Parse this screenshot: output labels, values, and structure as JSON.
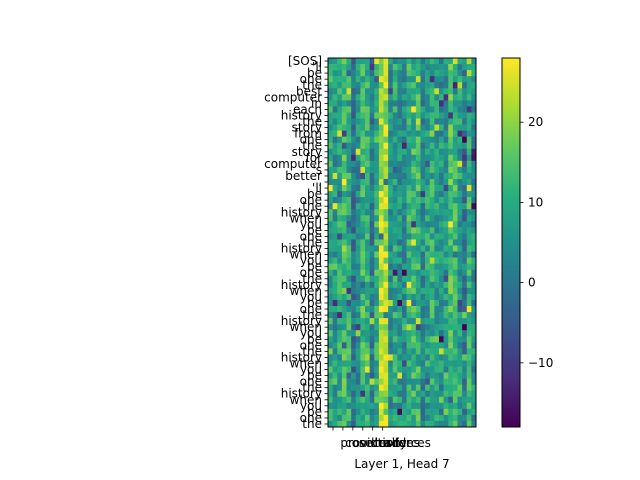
{
  "chart_data": {
    "type": "heatmap",
    "xlabel": "Layer 1, Head 7",
    "x_tick_labels": [
      "provide",
      "condition",
      "security",
      "trader",
      "slides",
      "forces"
    ],
    "y_tick_labels": [
      "[SOS]",
      "'ll",
      "be",
      "one",
      "the",
      "best",
      "computer",
      "in",
      "each",
      "history",
      "the",
      "story",
      "from",
      "one",
      "the",
      "story",
      "for",
      "computer",
      "'s",
      "better",
      ".",
      "'ll",
      "be",
      "one",
      "the",
      "history",
      "when",
      "you",
      "be",
      "one",
      "the",
      "history",
      "when",
      "you",
      "be",
      "one",
      "the",
      "history",
      "when",
      "you",
      "be",
      "one",
      "the",
      "history",
      "when",
      "you",
      "be",
      "one",
      "the",
      "history",
      "when",
      "you",
      "be",
      "one",
      "the",
      "history",
      "when",
      "you",
      "be",
      "one",
      "the"
    ],
    "n_cols": 32,
    "colorbar": {
      "min": -18,
      "max": 28,
      "ticks": [
        -10,
        0,
        10,
        20
      ]
    },
    "colormap": "viridis",
    "bright_columns": [
      11,
      12
    ],
    "notes": "values pseudo-random in approx. range -18..28 with bright vertical streak around column 11"
  }
}
